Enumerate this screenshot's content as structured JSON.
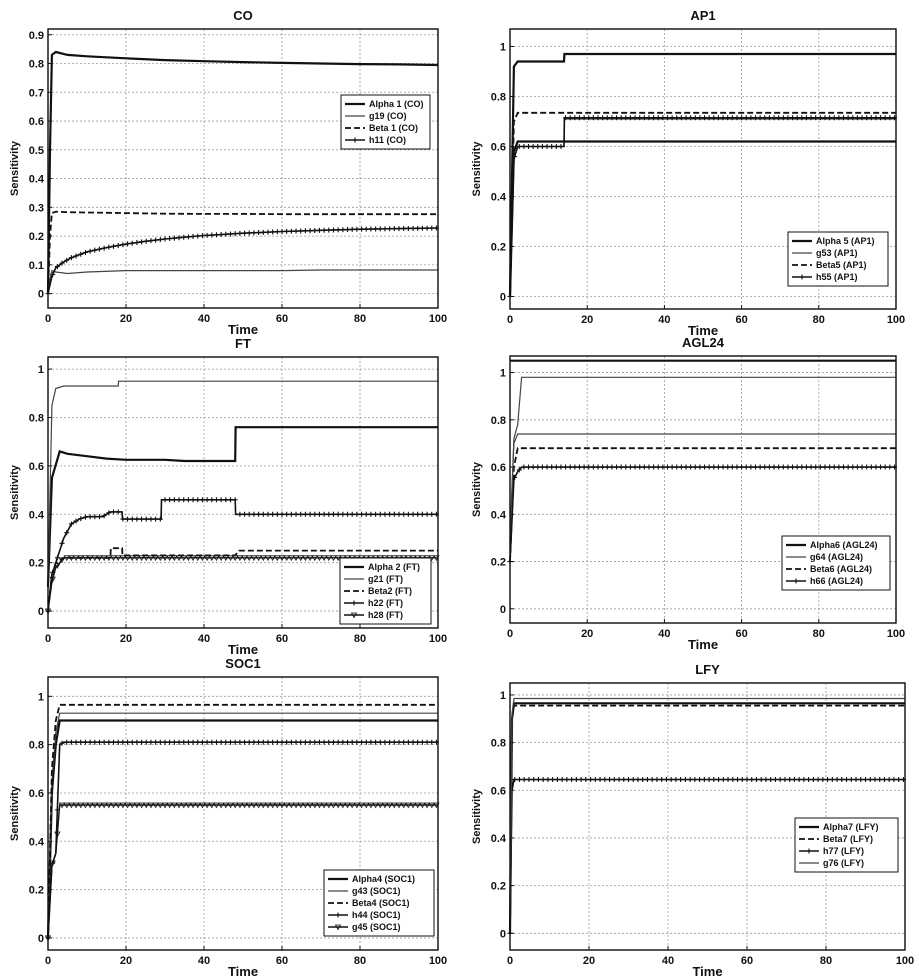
{
  "chart_data": [
    {
      "type": "line",
      "title": "CO",
      "xlabel": "Time",
      "ylabel": "Sensitivity",
      "xlim": [
        0,
        100
      ],
      "ylim": [
        -0.05,
        0.92
      ],
      "xticks": [
        "0",
        "20",
        "40",
        "60",
        "80",
        "100"
      ],
      "yticks": [
        "0",
        "0.1",
        "0.2",
        "0.3",
        "0.4",
        "0.5",
        "0.6",
        "0.7",
        "0.8",
        "0.9"
      ],
      "grid": true,
      "legend": "right",
      "series": [
        {
          "name": "Alpha 1 (CO)",
          "style": "solid-thick",
          "x": [
            0,
            0.5,
            1,
            2,
            5,
            10,
            20,
            30,
            40,
            50,
            60,
            70,
            80,
            90,
            100
          ],
          "y": [
            0,
            0.5,
            0.83,
            0.84,
            0.83,
            0.825,
            0.818,
            0.812,
            0.808,
            0.805,
            0.802,
            0.8,
            0.798,
            0.797,
            0.795
          ]
        },
        {
          "name": "g19 (CO)",
          "style": "solid-thin",
          "x": [
            0,
            0.5,
            1,
            2,
            5,
            10,
            20,
            30,
            40,
            50,
            60,
            70,
            80,
            90,
            100
          ],
          "y": [
            0,
            0.05,
            0.08,
            0.075,
            0.07,
            0.075,
            0.08,
            0.08,
            0.08,
            0.08,
            0.08,
            0.082,
            0.082,
            0.082,
            0.082
          ]
        },
        {
          "name": "Beta 1 (CO)",
          "style": "dashed",
          "x": [
            0,
            0.5,
            1,
            2,
            5,
            10,
            20,
            30,
            40,
            50,
            60,
            70,
            80,
            90,
            100
          ],
          "y": [
            0,
            0.2,
            0.28,
            0.285,
            0.283,
            0.282,
            0.28,
            0.278,
            0.277,
            0.277,
            0.276,
            0.276,
            0.276,
            0.276,
            0.276
          ]
        },
        {
          "name": "h11 (CO)",
          "style": "plus",
          "x": [
            0,
            1,
            2,
            4,
            6,
            8,
            10,
            15,
            20,
            25,
            30,
            35,
            40,
            45,
            50,
            55,
            60,
            65,
            70,
            75,
            80,
            85,
            90,
            95,
            100
          ],
          "y": [
            0,
            0.06,
            0.09,
            0.11,
            0.125,
            0.135,
            0.145,
            0.16,
            0.172,
            0.182,
            0.19,
            0.196,
            0.202,
            0.206,
            0.21,
            0.213,
            0.216,
            0.218,
            0.22,
            0.222,
            0.224,
            0.225,
            0.226,
            0.227,
            0.228
          ]
        }
      ]
    },
    {
      "type": "line",
      "title": "AP1",
      "xlabel": "Time",
      "ylabel": "Sensitivity",
      "xlim": [
        0,
        100
      ],
      "ylim": [
        -0.05,
        1.07
      ],
      "xticks": [
        "0",
        "20",
        "40",
        "60",
        "80",
        "100"
      ],
      "yticks": [
        "0",
        "0.2",
        "0.4",
        "0.6",
        "0.8",
        "1"
      ],
      "grid": true,
      "legend": "bottom-right",
      "series": [
        {
          "name": "Alpha 5 (AP1)",
          "style": "solid-thick",
          "x": [
            0,
            1,
            2,
            14,
            14.1,
            100
          ],
          "y": [
            0,
            0.92,
            0.94,
            0.94,
            0.97,
            0.97
          ]
        },
        {
          "name": "g53 (AP1)",
          "style": "solid-thin",
          "x": [
            0,
            1,
            2,
            14,
            14.1,
            100
          ],
          "y": [
            0,
            0.55,
            0.6,
            0.6,
            0.71,
            0.71
          ]
        },
        {
          "name": "Beta5 (AP1)",
          "style": "dashed",
          "x": [
            0,
            1,
            2,
            100
          ],
          "y": [
            0,
            0.7,
            0.735,
            0.735
          ]
        },
        {
          "name": "h55 (AP1)",
          "style": "plus",
          "x": [
            0,
            1,
            2,
            4,
            6,
            8,
            10,
            12,
            14,
            14.1,
            20,
            30,
            40,
            50,
            60,
            70,
            80,
            90,
            100
          ],
          "y": [
            0,
            0.55,
            0.6,
            0.6,
            0.6,
            0.6,
            0.6,
            0.6,
            0.6,
            0.715,
            0.715,
            0.715,
            0.715,
            0.715,
            0.715,
            0.715,
            0.715,
            0.715,
            0.715
          ]
        },
        {
          "name": "",
          "style": "solid-thick",
          "x": [
            0,
            1,
            2,
            100
          ],
          "y": [
            0,
            0.58,
            0.62,
            0.62
          ]
        }
      ]
    },
    {
      "type": "line",
      "title": "FT",
      "xlabel": "Time",
      "ylabel": "Sensitivity",
      "xlim": [
        0,
        100
      ],
      "ylim": [
        -0.07,
        1.05
      ],
      "xticks": [
        "0",
        "20",
        "40",
        "60",
        "80",
        "100"
      ],
      "yticks": [
        "0",
        "0.2",
        "0.4",
        "0.6",
        "0.8",
        "1"
      ],
      "grid": true,
      "legend": "bottom-right",
      "series": [
        {
          "name": "Alpha 2 (FT)",
          "style": "solid-thick",
          "x": [
            0,
            1,
            3,
            5,
            10,
            15,
            20,
            25,
            30,
            35,
            40,
            45,
            48,
            48.1,
            100
          ],
          "y": [
            0.1,
            0.55,
            0.66,
            0.65,
            0.64,
            0.63,
            0.625,
            0.625,
            0.625,
            0.62,
            0.62,
            0.62,
            0.62,
            0.76,
            0.76
          ]
        },
        {
          "name": "g21 (FT)",
          "style": "solid-thin",
          "x": [
            0,
            1,
            2,
            4,
            18,
            18.1,
            100
          ],
          "y": [
            0.1,
            0.85,
            0.92,
            0.93,
            0.93,
            0.95,
            0.95
          ]
        },
        {
          "name": "Beta2 (FT)",
          "style": "dashed",
          "x": [
            0,
            1,
            2,
            4,
            16,
            16.1,
            19,
            19.1,
            48,
            49,
            100
          ],
          "y": [
            0,
            0.15,
            0.2,
            0.22,
            0.22,
            0.26,
            0.26,
            0.23,
            0.23,
            0.25,
            0.25
          ]
        },
        {
          "name": "h22 (FT)",
          "style": "plus",
          "x": [
            0,
            1,
            2,
            3,
            4,
            6,
            8,
            10,
            14,
            16,
            18,
            19,
            19.1,
            29,
            29.1,
            48,
            48.1,
            60,
            80,
            100
          ],
          "y": [
            0,
            0.15,
            0.2,
            0.25,
            0.3,
            0.36,
            0.38,
            0.39,
            0.39,
            0.41,
            0.41,
            0.41,
            0.38,
            0.38,
            0.46,
            0.46,
            0.4,
            0.4,
            0.4,
            0.4
          ]
        },
        {
          "name": "h28 (FT)",
          "style": "triangle",
          "x": [
            0,
            1,
            2,
            4,
            10,
            20,
            30,
            40,
            50,
            60,
            70,
            80,
            90,
            100
          ],
          "y": [
            0,
            0.12,
            0.18,
            0.22,
            0.22,
            0.22,
            0.22,
            0.22,
            0.22,
            0.22,
            0.22,
            0.22,
            0.22,
            0.22
          ]
        }
      ]
    },
    {
      "type": "line",
      "title": "AGL24",
      "xlabel": "Time",
      "ylabel": "Sensitivity",
      "xlim": [
        0,
        100
      ],
      "ylim": [
        -0.06,
        1.07
      ],
      "xticks": [
        "0",
        "20",
        "40",
        "60",
        "80",
        "100"
      ],
      "yticks": [
        "0",
        "0.2",
        "0.4",
        "0.6",
        "0.8",
        "1"
      ],
      "grid": true,
      "legend": "bottom-right",
      "series": [
        {
          "name": "Alpha6 (AGL24)",
          "style": "solid-thick",
          "x": [
            0,
            100
          ],
          "y": [
            1.05,
            1.05
          ]
        },
        {
          "name": "g64 (AGL24)",
          "style": "solid-thin",
          "x": [
            0,
            1,
            2,
            3,
            100
          ],
          "y": [
            0.3,
            0.72,
            0.78,
            0.98,
            0.98
          ]
        },
        {
          "name": "Beta6 (AGL24)",
          "style": "dashed",
          "x": [
            0,
            1,
            2,
            100
          ],
          "y": [
            0.2,
            0.6,
            0.68,
            0.68
          ]
        },
        {
          "name": "h66 (AGL24)",
          "style": "plus",
          "x": [
            0,
            1,
            2,
            3,
            4,
            10,
            20,
            30,
            40,
            50,
            60,
            70,
            80,
            90,
            100
          ],
          "y": [
            0.2,
            0.55,
            0.58,
            0.6,
            0.6,
            0.6,
            0.6,
            0.6,
            0.6,
            0.6,
            0.6,
            0.6,
            0.6,
            0.6,
            0.6
          ]
        },
        {
          "name": "",
          "style": "solid-thin",
          "x": [
            0,
            1,
            2,
            100
          ],
          "y": [
            0.3,
            0.7,
            0.74,
            0.74
          ]
        }
      ]
    },
    {
      "type": "line",
      "title": "SOC1",
      "xlabel": "Time",
      "ylabel": "Sensitivity",
      "xlim": [
        0,
        100
      ],
      "ylim": [
        -0.05,
        1.08
      ],
      "xticks": [
        "0",
        "20",
        "40",
        "60",
        "80",
        "100"
      ],
      "yticks": [
        "0",
        "0.2",
        "0.4",
        "0.6",
        "0.8",
        "1"
      ],
      "grid": true,
      "legend": "bottom-right",
      "series": [
        {
          "name": "Alpha4 (SOC1)",
          "style": "solid-thick",
          "x": [
            0,
            1,
            2,
            3,
            100
          ],
          "y": [
            0,
            0.6,
            0.8,
            0.9,
            0.9
          ]
        },
        {
          "name": "g43 (SOC1)",
          "style": "solid-thin",
          "x": [
            0,
            1,
            2,
            3,
            100
          ],
          "y": [
            0,
            0.65,
            0.85,
            0.93,
            0.93
          ]
        },
        {
          "name": "Beta4 (SOC1)",
          "style": "dashed",
          "x": [
            0,
            1,
            2,
            3,
            100
          ],
          "y": [
            0,
            0.7,
            0.9,
            0.965,
            0.965
          ]
        },
        {
          "name": "h44 (SOC1)",
          "style": "plus",
          "x": [
            0,
            1,
            2,
            3,
            4,
            10,
            20,
            30,
            40,
            50,
            60,
            70,
            80,
            90,
            100
          ],
          "y": [
            0,
            0.3,
            0.35,
            0.8,
            0.81,
            0.81,
            0.81,
            0.81,
            0.81,
            0.81,
            0.81,
            0.81,
            0.81,
            0.81,
            0.81
          ]
        },
        {
          "name": "g45 (SOC1)",
          "style": "triangle",
          "x": [
            0,
            1,
            2,
            3,
            4,
            10,
            20,
            30,
            40,
            50,
            60,
            70,
            80,
            90,
            100
          ],
          "y": [
            0,
            0.3,
            0.35,
            0.55,
            0.55,
            0.55,
            0.55,
            0.55,
            0.55,
            0.55,
            0.55,
            0.55,
            0.55,
            0.55,
            0.55
          ]
        }
      ]
    },
    {
      "type": "line",
      "title": "LFY",
      "xlabel": "Time",
      "ylabel": "Sensitivity",
      "xlim": [
        0,
        100
      ],
      "ylim": [
        -0.07,
        1.05
      ],
      "xticks": [
        "0",
        "20",
        "40",
        "60",
        "80",
        "100"
      ],
      "yticks": [
        "0",
        "0.2",
        "0.4",
        "0.6",
        "0.8",
        "1"
      ],
      "grid": true,
      "legend": "right",
      "series": [
        {
          "name": "Alpha7 (LFY)",
          "style": "solid-thick",
          "x": [
            0,
            0.5,
            1,
            100
          ],
          "y": [
            0,
            0.9,
            0.965,
            0.965
          ]
        },
        {
          "name": "Beta7 (LFY)",
          "style": "dashed",
          "x": [
            0,
            0.5,
            1,
            100
          ],
          "y": [
            0,
            0.9,
            0.955,
            0.955
          ]
        },
        {
          "name": "h77 (LFY)",
          "style": "plus",
          "x": [
            0,
            0.5,
            1,
            2,
            10,
            20,
            30,
            40,
            50,
            60,
            70,
            80,
            90,
            100
          ],
          "y": [
            0,
            0.6,
            0.645,
            0.645,
            0.645,
            0.645,
            0.645,
            0.645,
            0.645,
            0.645,
            0.645,
            0.645,
            0.645,
            0.645
          ]
        },
        {
          "name": "g76 (LFY)",
          "style": "solid-thin",
          "x": [
            0,
            0.5,
            1,
            100
          ],
          "y": [
            0,
            0.92,
            0.985,
            0.985
          ]
        }
      ]
    }
  ]
}
